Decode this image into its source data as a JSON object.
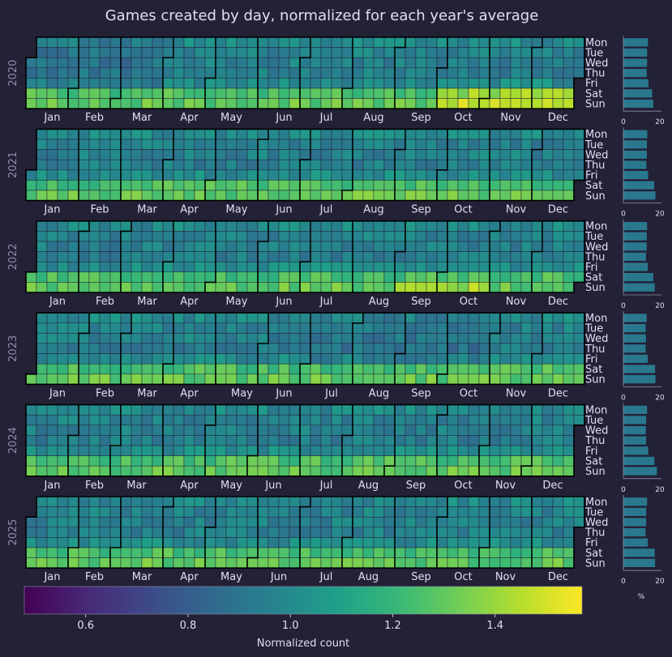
{
  "chart_data": {
    "type": "heatmap",
    "title": "Games created by day, normalized for each year's average",
    "years": [
      {
        "label": "2020",
        "start_weekday": 2,
        "days": 366,
        "month_labels": [
          "Jan",
          "Feb",
          "Mar",
          "Apr",
          "May",
          "Jun",
          "Jul",
          "Aug",
          "Sep",
          "Oct",
          "Nov",
          "Dec"
        ],
        "weekday_pct": [
          13.5,
          13.0,
          13.0,
          12.8,
          13.8,
          15.8,
          16.4
        ]
      },
      {
        "label": "2021",
        "start_weekday": 4,
        "days": 365,
        "month_labels": [
          "Jan",
          "Feb",
          "Mar",
          "Apr",
          "May",
          "Jun",
          "Jul",
          "Aug",
          "Sep",
          "Oct",
          "Nov",
          "Dec"
        ],
        "weekday_pct": [
          13.1,
          12.9,
          12.9,
          12.6,
          13.6,
          16.9,
          17.6
        ]
      },
      {
        "label": "2022",
        "start_weekday": 5,
        "days": 365,
        "month_labels": [
          "Jan",
          "Feb",
          "Mar",
          "Apr",
          "May",
          "Jun",
          "Jul",
          "Aug",
          "Sep",
          "Oct",
          "Nov",
          "Dec"
        ],
        "weekday_pct": [
          13.0,
          12.8,
          12.8,
          12.4,
          13.4,
          16.4,
          17.2
        ]
      },
      {
        "label": "2023",
        "start_weekday": 6,
        "days": 365,
        "month_labels": [
          "Jan",
          "Feb",
          "Mar",
          "Apr",
          "May",
          "Jun",
          "Jul",
          "Aug",
          "Sep",
          "Oct",
          "Nov",
          "Dec"
        ],
        "weekday_pct": [
          12.8,
          12.2,
          12.4,
          12.2,
          13.4,
          17.4,
          17.6
        ]
      },
      {
        "label": "2024",
        "start_weekday": 0,
        "days": 366,
        "month_labels": [
          "Jan",
          "Feb",
          "Mar",
          "Apr",
          "May",
          "Jun",
          "Jul",
          "Aug",
          "Sep",
          "Oct",
          "Nov",
          "Dec"
        ],
        "weekday_pct": [
          13.0,
          12.5,
          12.3,
          12.5,
          13.6,
          17.0,
          18.4
        ]
      },
      {
        "label": "2025",
        "start_weekday": 2,
        "days": 365,
        "month_labels": [
          "Jan",
          "Feb",
          "Mar",
          "Apr",
          "May",
          "Jun",
          "Jul",
          "Aug",
          "Sep",
          "Oct",
          "Nov",
          "Dec"
        ],
        "weekday_pct": [
          13.0,
          12.5,
          12.5,
          12.2,
          13.4,
          17.2,
          17.4
        ]
      }
    ],
    "weekday_labels": [
      "Mon",
      "Tue",
      "Wed",
      "Thu",
      "Fri",
      "Sat",
      "Sun"
    ],
    "weekday_base": [
      1.0,
      0.96,
      0.96,
      0.95,
      1.01,
      1.25,
      1.3
    ],
    "bar_axis": {
      "ticks": [
        "0",
        "20"
      ],
      "max": 20,
      "xlabel": "%"
    },
    "colorbar": {
      "label": "Normalized count",
      "min": 0.48,
      "max": 1.57,
      "ticks": [
        "0.6",
        "0.8",
        "1.0",
        "1.2",
        "1.4"
      ]
    },
    "colors": {
      "background": "#232136",
      "text": "#e0def4",
      "muted": "#908caa",
      "bar": "#2a788e",
      "border": "#000000"
    }
  }
}
